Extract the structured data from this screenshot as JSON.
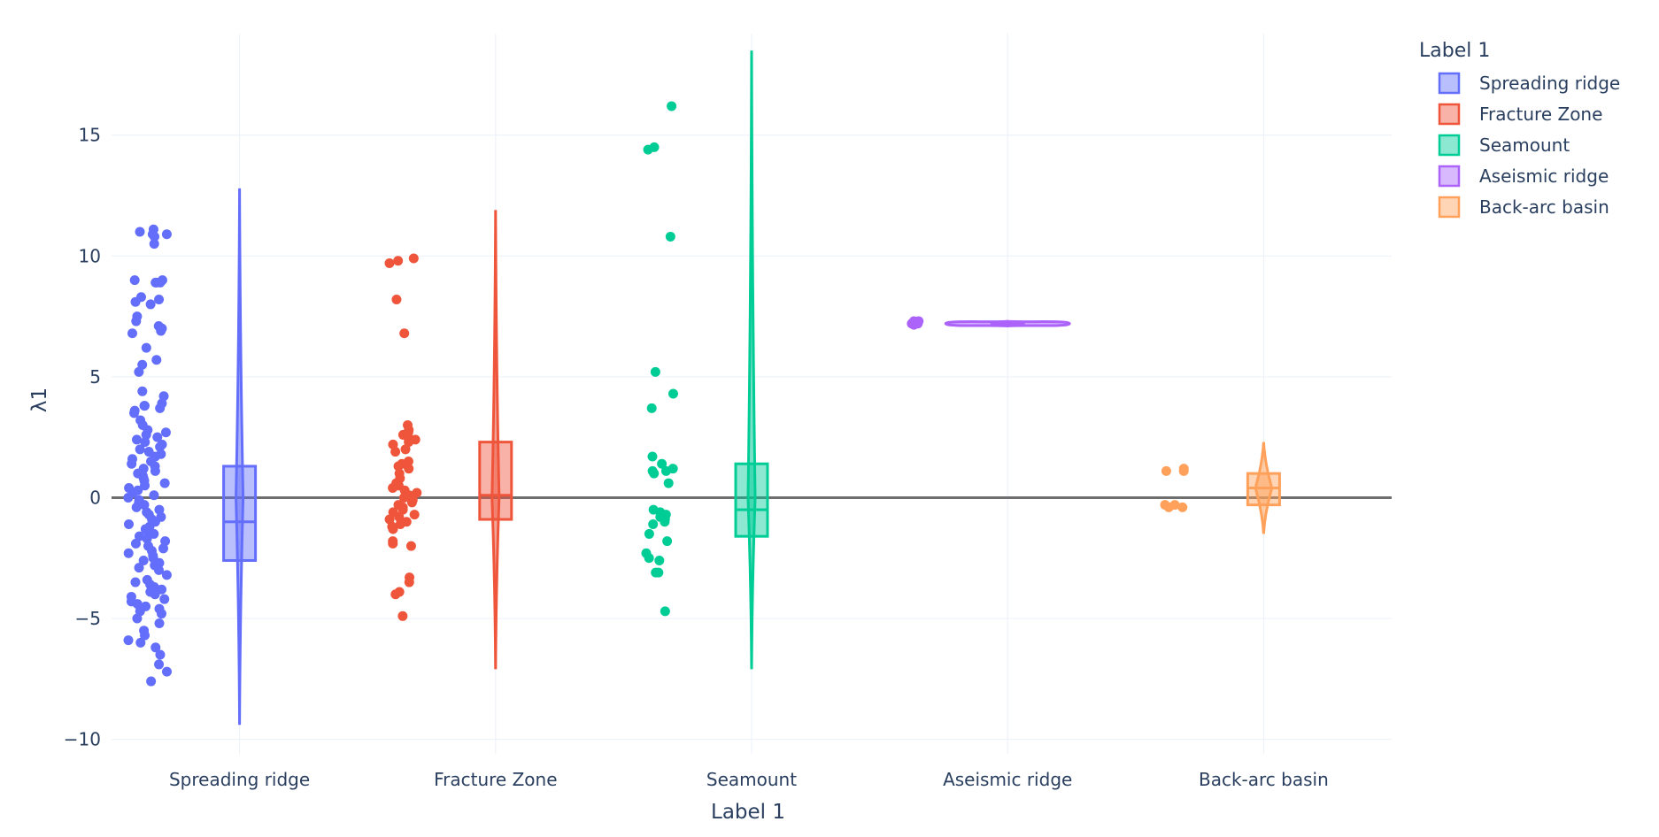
{
  "chart_data": {
    "type": "box",
    "xlabel": "Label 1",
    "ylabel": "λ1",
    "ylim": [
      -10.6,
      19.2
    ],
    "yticks": [
      -10,
      -5,
      0,
      5,
      10,
      15
    ],
    "ytick_labels": [
      "−10",
      "−5",
      "0",
      "5",
      "10",
      "15"
    ],
    "grid": true,
    "zeroline": true,
    "legend_title": "Label 1",
    "legend_position": "top-right",
    "categories": [
      "Spreading ridge",
      "Fracture Zone",
      "Seamount",
      "Aseismic ridge",
      "Back-arc basin"
    ],
    "series": [
      {
        "name": "Spreading ridge",
        "color": "#636efa",
        "box": {
          "q1": -2.6,
          "median": -1.0,
          "q3": 1.3
        },
        "violin": {
          "min": -9.4,
          "max": 12.8
        },
        "points": [
          11.1,
          11.0,
          10.9,
          10.9,
          10.8,
          10.5,
          9.0,
          9.0,
          8.9,
          8.9,
          8.9,
          8.3,
          8.2,
          8.1,
          8.0,
          7.5,
          7.3,
          7.1,
          7.0,
          6.9,
          6.8,
          6.2,
          5.7,
          5.5,
          5.2,
          4.4,
          4.2,
          3.9,
          3.8,
          3.8,
          3.7,
          3.6,
          3.5,
          3.2,
          3.0,
          2.8,
          2.7,
          2.6,
          2.5,
          2.4,
          2.3,
          2.2,
          2.1,
          2.0,
          1.9,
          1.8,
          1.7,
          1.6,
          1.5,
          1.4,
          1.3,
          1.2,
          1.1,
          1.0,
          0.9,
          0.8,
          0.7,
          0.6,
          0.5,
          0.4,
          0.3,
          0.2,
          0.1,
          0.0,
          -0.1,
          -0.2,
          -0.3,
          -0.4,
          -0.5,
          -0.6,
          -0.7,
          -0.8,
          -0.9,
          -1.0,
          -1.1,
          -1.2,
          -1.3,
          -1.4,
          -1.5,
          -1.6,
          -1.7,
          -1.8,
          -1.9,
          -2.0,
          -2.1,
          -2.2,
          -2.3,
          -2.4,
          -2.5,
          -2.6,
          -2.7,
          -2.8,
          -2.9,
          -3.0,
          -3.2,
          -3.4,
          -3.5,
          -3.6,
          -3.7,
          -3.8,
          -3.9,
          -4.0,
          -4.1,
          -4.2,
          -4.3,
          -4.4,
          -4.5,
          -4.6,
          -4.7,
          -4.8,
          -5.0,
          -5.2,
          -5.5,
          -5.7,
          -5.9,
          -6.0,
          -6.2,
          -6.5,
          -6.9,
          -7.2,
          -7.6
        ]
      },
      {
        "name": "Fracture Zone",
        "color": "#ef553b",
        "box": {
          "q1": -0.9,
          "median": 0.1,
          "q3": 2.3
        },
        "violin": {
          "min": -7.1,
          "max": 11.9
        },
        "points": [
          9.9,
          9.8,
          9.7,
          8.2,
          6.8,
          3.0,
          2.8,
          2.7,
          2.6,
          2.5,
          2.4,
          2.3,
          2.2,
          2.0,
          1.9,
          1.5,
          1.4,
          1.3,
          1.2,
          1.0,
          0.8,
          0.6,
          0.5,
          0.4,
          0.3,
          0.2,
          0.1,
          0.0,
          -0.1,
          -0.2,
          -0.3,
          -0.4,
          -0.5,
          -0.6,
          -0.7,
          -0.8,
          -0.9,
          -1.0,
          -1.1,
          -1.2,
          -1.3,
          -1.8,
          -1.9,
          -2.0,
          -3.3,
          -3.5,
          -3.9,
          -4.0,
          -4.9
        ]
      },
      {
        "name": "Seamount",
        "color": "#00cc96",
        "box": {
          "q1": -1.6,
          "median": -0.5,
          "q3": 1.4
        },
        "violin": {
          "min": -7.1,
          "max": 18.5
        },
        "points": [
          16.2,
          14.5,
          14.4,
          10.8,
          5.2,
          4.3,
          3.7,
          1.7,
          1.4,
          1.2,
          1.1,
          1.1,
          1.0,
          0.6,
          -0.5,
          -0.6,
          -0.7,
          -0.8,
          -0.9,
          -1.0,
          -1.1,
          -1.5,
          -1.8,
          -2.3,
          -2.5,
          -2.6,
          -3.1,
          -3.1,
          -4.7
        ]
      },
      {
        "name": "Aseismic ridge",
        "color": "#ab63fa",
        "box": {
          "q1": 7.15,
          "median": 7.2,
          "q3": 7.25
        },
        "violin": {
          "min": 7.1,
          "max": 7.3
        },
        "points": [
          7.3,
          7.25,
          7.2,
          7.15,
          7.3,
          7.2
        ]
      },
      {
        "name": "Back-arc basin",
        "color": "#ffa15a",
        "box": {
          "q1": -0.3,
          "median": 0.4,
          "q3": 1.0
        },
        "violin": {
          "min": -1.5,
          "max": 2.3
        },
        "points": [
          1.1,
          1.2,
          1.1,
          -0.3,
          -0.4,
          -0.4,
          -0.3
        ]
      }
    ]
  }
}
